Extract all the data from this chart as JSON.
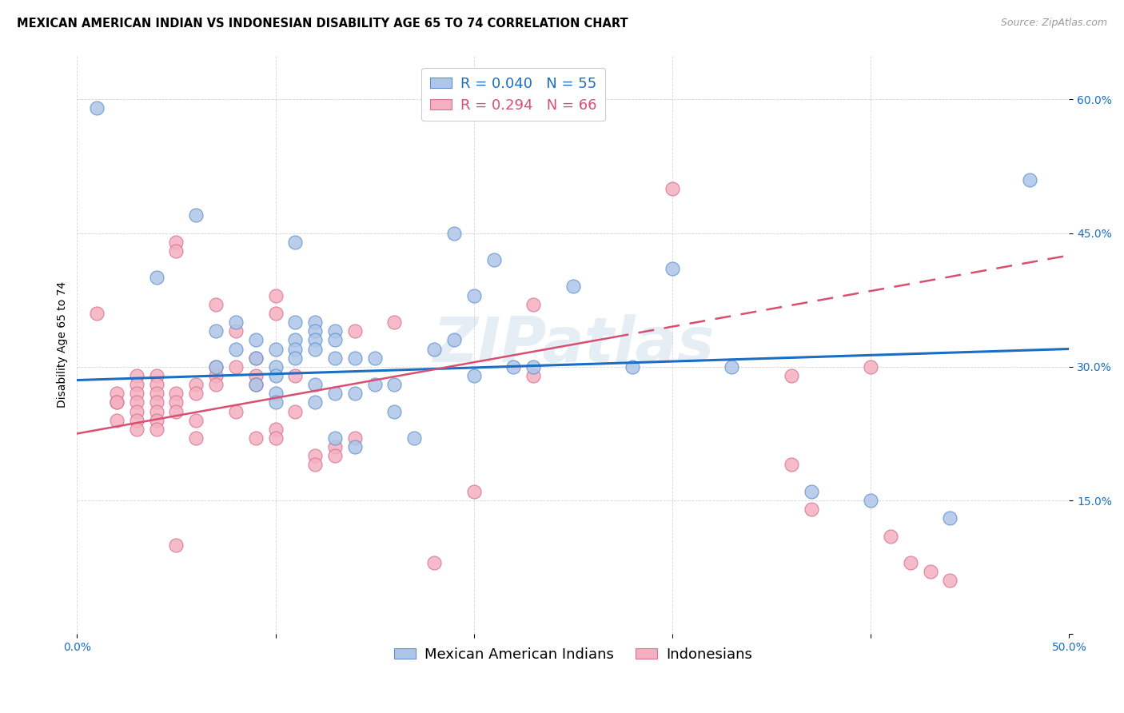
{
  "title": "MEXICAN AMERICAN INDIAN VS INDONESIAN DISABILITY AGE 65 TO 74 CORRELATION CHART",
  "source": "Source: ZipAtlas.com",
  "ylabel": "Disability Age 65 to 74",
  "xlim": [
    0.0,
    0.5
  ],
  "ylim": [
    0.0,
    0.65
  ],
  "yticks": [
    0.0,
    0.15,
    0.3,
    0.45,
    0.6
  ],
  "ytick_labels": [
    "",
    "15.0%",
    "30.0%",
    "45.0%",
    "60.0%"
  ],
  "blue_R": 0.04,
  "blue_N": 55,
  "pink_R": 0.294,
  "pink_N": 66,
  "watermark": "ZIPatlas",
  "legend_label_blue": "Mexican American Indians",
  "legend_label_pink": "Indonesians",
  "blue_scatter": [
    [
      0.01,
      0.59
    ],
    [
      0.04,
      0.4
    ],
    [
      0.06,
      0.47
    ],
    [
      0.07,
      0.3
    ],
    [
      0.07,
      0.34
    ],
    [
      0.08,
      0.32
    ],
    [
      0.08,
      0.35
    ],
    [
      0.09,
      0.31
    ],
    [
      0.09,
      0.33
    ],
    [
      0.09,
      0.28
    ],
    [
      0.1,
      0.32
    ],
    [
      0.1,
      0.3
    ],
    [
      0.1,
      0.29
    ],
    [
      0.1,
      0.27
    ],
    [
      0.1,
      0.26
    ],
    [
      0.11,
      0.44
    ],
    [
      0.11,
      0.35
    ],
    [
      0.11,
      0.33
    ],
    [
      0.11,
      0.32
    ],
    [
      0.11,
      0.31
    ],
    [
      0.12,
      0.35
    ],
    [
      0.12,
      0.34
    ],
    [
      0.12,
      0.33
    ],
    [
      0.12,
      0.32
    ],
    [
      0.12,
      0.28
    ],
    [
      0.12,
      0.26
    ],
    [
      0.13,
      0.34
    ],
    [
      0.13,
      0.33
    ],
    [
      0.13,
      0.31
    ],
    [
      0.13,
      0.27
    ],
    [
      0.13,
      0.22
    ],
    [
      0.14,
      0.31
    ],
    [
      0.14,
      0.27
    ],
    [
      0.14,
      0.21
    ],
    [
      0.15,
      0.31
    ],
    [
      0.15,
      0.28
    ],
    [
      0.16,
      0.28
    ],
    [
      0.16,
      0.25
    ],
    [
      0.17,
      0.22
    ],
    [
      0.18,
      0.32
    ],
    [
      0.19,
      0.45
    ],
    [
      0.19,
      0.33
    ],
    [
      0.2,
      0.38
    ],
    [
      0.2,
      0.29
    ],
    [
      0.21,
      0.42
    ],
    [
      0.22,
      0.3
    ],
    [
      0.23,
      0.3
    ],
    [
      0.25,
      0.39
    ],
    [
      0.28,
      0.3
    ],
    [
      0.3,
      0.41
    ],
    [
      0.33,
      0.3
    ],
    [
      0.37,
      0.16
    ],
    [
      0.4,
      0.15
    ],
    [
      0.44,
      0.13
    ],
    [
      0.48,
      0.51
    ]
  ],
  "pink_scatter": [
    [
      0.01,
      0.36
    ],
    [
      0.02,
      0.27
    ],
    [
      0.02,
      0.26
    ],
    [
      0.02,
      0.26
    ],
    [
      0.02,
      0.24
    ],
    [
      0.03,
      0.29
    ],
    [
      0.03,
      0.28
    ],
    [
      0.03,
      0.27
    ],
    [
      0.03,
      0.26
    ],
    [
      0.03,
      0.25
    ],
    [
      0.03,
      0.24
    ],
    [
      0.03,
      0.23
    ],
    [
      0.04,
      0.29
    ],
    [
      0.04,
      0.28
    ],
    [
      0.04,
      0.27
    ],
    [
      0.04,
      0.26
    ],
    [
      0.04,
      0.25
    ],
    [
      0.04,
      0.24
    ],
    [
      0.04,
      0.23
    ],
    [
      0.05,
      0.44
    ],
    [
      0.05,
      0.43
    ],
    [
      0.05,
      0.27
    ],
    [
      0.05,
      0.26
    ],
    [
      0.05,
      0.25
    ],
    [
      0.05,
      0.1
    ],
    [
      0.06,
      0.28
    ],
    [
      0.06,
      0.27
    ],
    [
      0.06,
      0.24
    ],
    [
      0.06,
      0.22
    ],
    [
      0.07,
      0.37
    ],
    [
      0.07,
      0.3
    ],
    [
      0.07,
      0.29
    ],
    [
      0.07,
      0.28
    ],
    [
      0.08,
      0.34
    ],
    [
      0.08,
      0.3
    ],
    [
      0.08,
      0.25
    ],
    [
      0.09,
      0.31
    ],
    [
      0.09,
      0.29
    ],
    [
      0.09,
      0.28
    ],
    [
      0.09,
      0.22
    ],
    [
      0.1,
      0.38
    ],
    [
      0.1,
      0.36
    ],
    [
      0.1,
      0.23
    ],
    [
      0.1,
      0.22
    ],
    [
      0.11,
      0.29
    ],
    [
      0.11,
      0.25
    ],
    [
      0.12,
      0.2
    ],
    [
      0.12,
      0.19
    ],
    [
      0.13,
      0.21
    ],
    [
      0.13,
      0.2
    ],
    [
      0.14,
      0.34
    ],
    [
      0.14,
      0.22
    ],
    [
      0.16,
      0.35
    ],
    [
      0.18,
      0.08
    ],
    [
      0.2,
      0.16
    ],
    [
      0.23,
      0.37
    ],
    [
      0.23,
      0.29
    ],
    [
      0.3,
      0.5
    ],
    [
      0.36,
      0.29
    ],
    [
      0.36,
      0.19
    ],
    [
      0.37,
      0.14
    ],
    [
      0.4,
      0.3
    ],
    [
      0.41,
      0.11
    ],
    [
      0.42,
      0.08
    ],
    [
      0.43,
      0.07
    ],
    [
      0.44,
      0.06
    ]
  ],
  "blue_face_color": "#aec6e8",
  "pink_face_color": "#f4b0c0",
  "blue_edge_color": "#6090cc",
  "pink_edge_color": "#d87090",
  "blue_line_color": "#1a6fc4",
  "pink_line_color": "#d85070",
  "title_fontsize": 10.5,
  "source_fontsize": 9,
  "axis_label_fontsize": 10,
  "tick_fontsize": 10,
  "legend_fontsize": 13,
  "watermark_color": "#c0d4e8",
  "watermark_alpha": 0.4,
  "grid_color": "#cccccc"
}
